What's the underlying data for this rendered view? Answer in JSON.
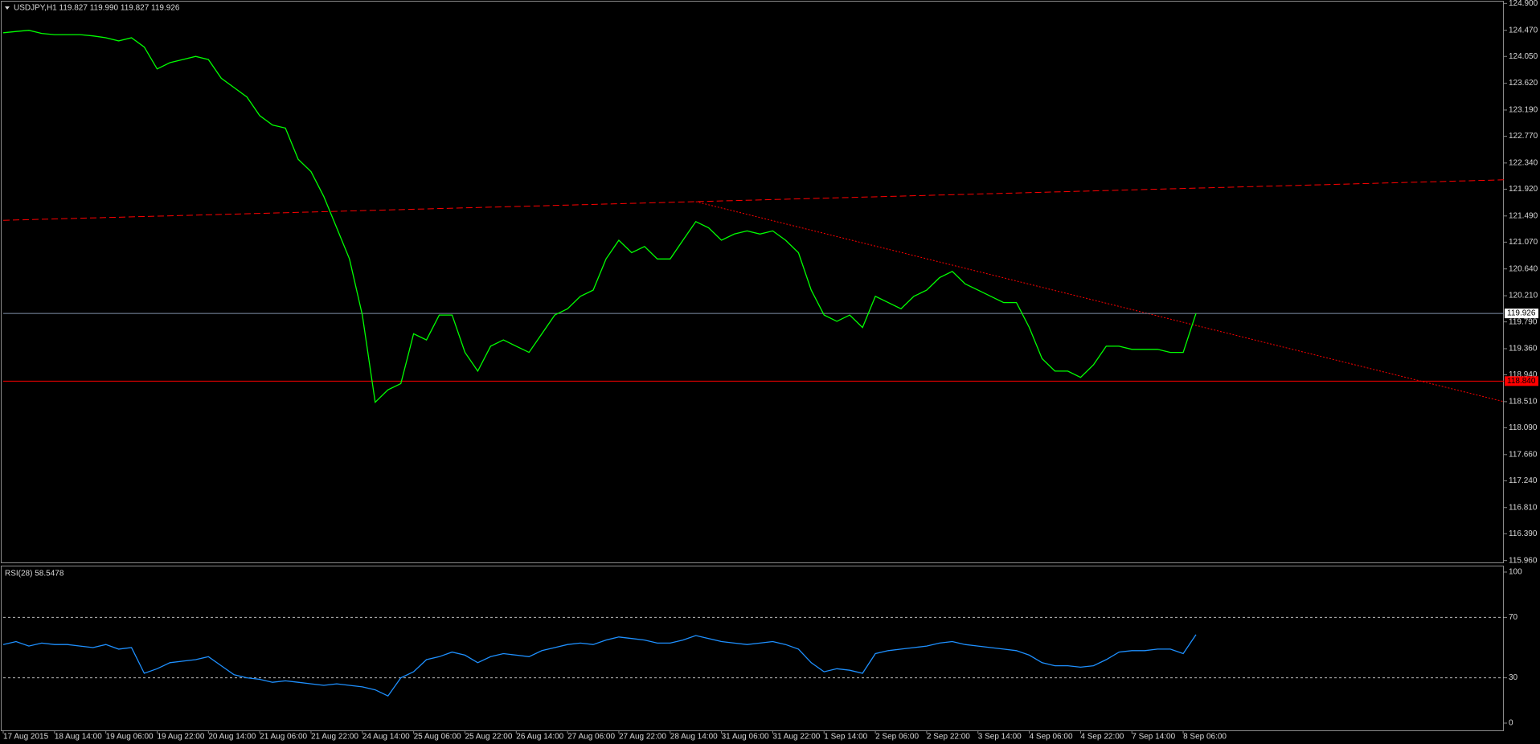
{
  "chart_data": [
    {
      "type": "line",
      "title": "USDJPY,H1  119.827 119.990 119.827 119.926",
      "categories": [
        "17 Aug 2015",
        null,
        null,
        null,
        "18 Aug 14:00",
        null,
        null,
        null,
        "19 Aug 06:00",
        null,
        null,
        null,
        "19 Aug 22:00",
        null,
        null,
        null,
        "20 Aug 14:00",
        null,
        null,
        null,
        "21 Aug 06:00",
        null,
        null,
        null,
        "21 Aug 22:00",
        null,
        null,
        null,
        "24 Aug 14:00",
        null,
        null,
        null,
        "25 Aug 06:00",
        null,
        null,
        null,
        "25 Aug 22:00",
        null,
        null,
        null,
        "26 Aug 14:00",
        null,
        null,
        null,
        "27 Aug 06:00",
        null,
        null,
        null,
        "27 Aug 22:00",
        null,
        null,
        null,
        "28 Aug 14:00",
        null,
        null,
        null,
        "31 Aug 06:00",
        null,
        null,
        null,
        "31 Aug 22:00",
        null,
        null,
        null,
        "1 Sep 14:00",
        null,
        null,
        null,
        "2 Sep 06:00",
        null,
        null,
        null,
        "2 Sep 22:00",
        null,
        null,
        null,
        "3 Sep 14:00",
        null,
        null,
        null,
        "4 Sep 06:00",
        null,
        null,
        null,
        "4 Sep 22:00",
        null,
        null,
        null,
        "7 Sep 14:00",
        null,
        null,
        null,
        "8 Sep 06:00",
        null
      ],
      "series": [
        {
          "color": "#00ff00",
          "values": [
            124.43,
            124.45,
            124.47,
            124.42,
            124.4,
            124.4,
            124.4,
            124.38,
            124.35,
            124.3,
            124.35,
            124.2,
            123.85,
            123.95,
            124.0,
            124.05,
            124.0,
            123.7,
            123.55,
            123.4,
            123.1,
            122.95,
            122.9,
            122.4,
            122.2,
            121.8,
            121.3,
            120.8,
            119.9,
            118.5,
            118.7,
            118.8,
            119.6,
            119.5,
            119.9,
            119.9,
            119.3,
            119.0,
            119.4,
            119.5,
            119.4,
            119.3,
            119.6,
            119.9,
            120.0,
            120.2,
            120.3,
            120.8,
            121.1,
            120.9,
            121.0,
            120.8,
            120.8,
            121.1,
            121.4,
            121.3,
            121.1,
            121.2,
            121.25,
            121.2,
            121.25,
            121.1,
            120.9,
            120.3,
            119.9,
            119.8,
            119.9,
            119.7,
            120.2,
            120.1,
            120.0,
            120.2,
            120.3,
            120.5,
            120.6,
            120.4,
            120.3,
            120.2,
            120.1,
            120.1,
            119.7,
            119.2,
            119.0,
            119.0,
            118.9,
            119.1,
            119.4,
            119.4,
            119.35,
            119.35,
            119.35,
            119.3,
            119.3,
            119.926
          ]
        }
      ],
      "ylim": [
        115.93,
        124.93
      ],
      "yticks": [
        {
          "value": 124.9,
          "label": "124.900"
        },
        {
          "value": 124.47,
          "label": "124.470"
        },
        {
          "value": 124.05,
          "label": "124.050"
        },
        {
          "value": 123.62,
          "label": "123.620"
        },
        {
          "value": 123.19,
          "label": "123.190"
        },
        {
          "value": 122.77,
          "label": "122.770"
        },
        {
          "value": 122.34,
          "label": "122.340"
        },
        {
          "value": 121.92,
          "label": "121.920"
        },
        {
          "value": 121.49,
          "label": "121.490"
        },
        {
          "value": 121.07,
          "label": "121.070"
        },
        {
          "value": 120.64,
          "label": "120.640"
        },
        {
          "value": 120.21,
          "label": "120.210"
        },
        {
          "value": 119.79,
          "label": "119.790"
        },
        {
          "value": 119.36,
          "label": "119.360"
        },
        {
          "value": 118.94,
          "label": "118.940"
        },
        {
          "value": 118.51,
          "label": "118.510"
        },
        {
          "value": 118.09,
          "label": "118.090"
        },
        {
          "value": 117.66,
          "label": "117.660"
        },
        {
          "value": 117.24,
          "label": "117.240"
        },
        {
          "value": 116.81,
          "label": "116.810"
        },
        {
          "value": 116.39,
          "label": "116.390"
        },
        {
          "value": 115.96,
          "label": "115.960"
        }
      ],
      "hlines": [
        {
          "value": 119.926,
          "color": "#7f8fa8"
        },
        {
          "value": {
            "value": 118.84,
            "label": "118.840"
          },
          "color": "#ff0000"
        }
      ],
      "trendlines": [
        {
          "x": [
            0,
            117
          ],
          "values": [
            121.42,
            122.07
          ],
          "color": "#ff0000",
          "dash": "8 4"
        },
        {
          "x": [
            54,
            117
          ],
          "values": [
            121.72,
            118.51
          ],
          "color": "#ff0000",
          "dash": "2 2"
        }
      ]
    },
    {
      "type": "line",
      "title": "RSI(28) 58.5478",
      "series": [
        {
          "color": "#1e90ff",
          "values": [
            52,
            54,
            51,
            53,
            52,
            52,
            51,
            50,
            52,
            49,
            50,
            33,
            36,
            40,
            41,
            42,
            44,
            38,
            32,
            30,
            29,
            27,
            28,
            27,
            26,
            25,
            26,
            25,
            24,
            22,
            18,
            30,
            34,
            42,
            44,
            47,
            45,
            40,
            44,
            46,
            45,
            44,
            48,
            50,
            52,
            53,
            52,
            55,
            57,
            56,
            55,
            53,
            53,
            55,
            58,
            56,
            54,
            53,
            52,
            53,
            54,
            52,
            49,
            40,
            34,
            36,
            35,
            33,
            46,
            48,
            49,
            50,
            51,
            53,
            54,
            52,
            51,
            50,
            49,
            48,
            45,
            40,
            38,
            38,
            37,
            38,
            42,
            47,
            48,
            48,
            49,
            49,
            46,
            58.5478
          ]
        }
      ],
      "ylim": [
        0,
        100
      ],
      "yticks": [
        100,
        70,
        30,
        0
      ],
      "levels": [
        70,
        30
      ]
    }
  ]
}
